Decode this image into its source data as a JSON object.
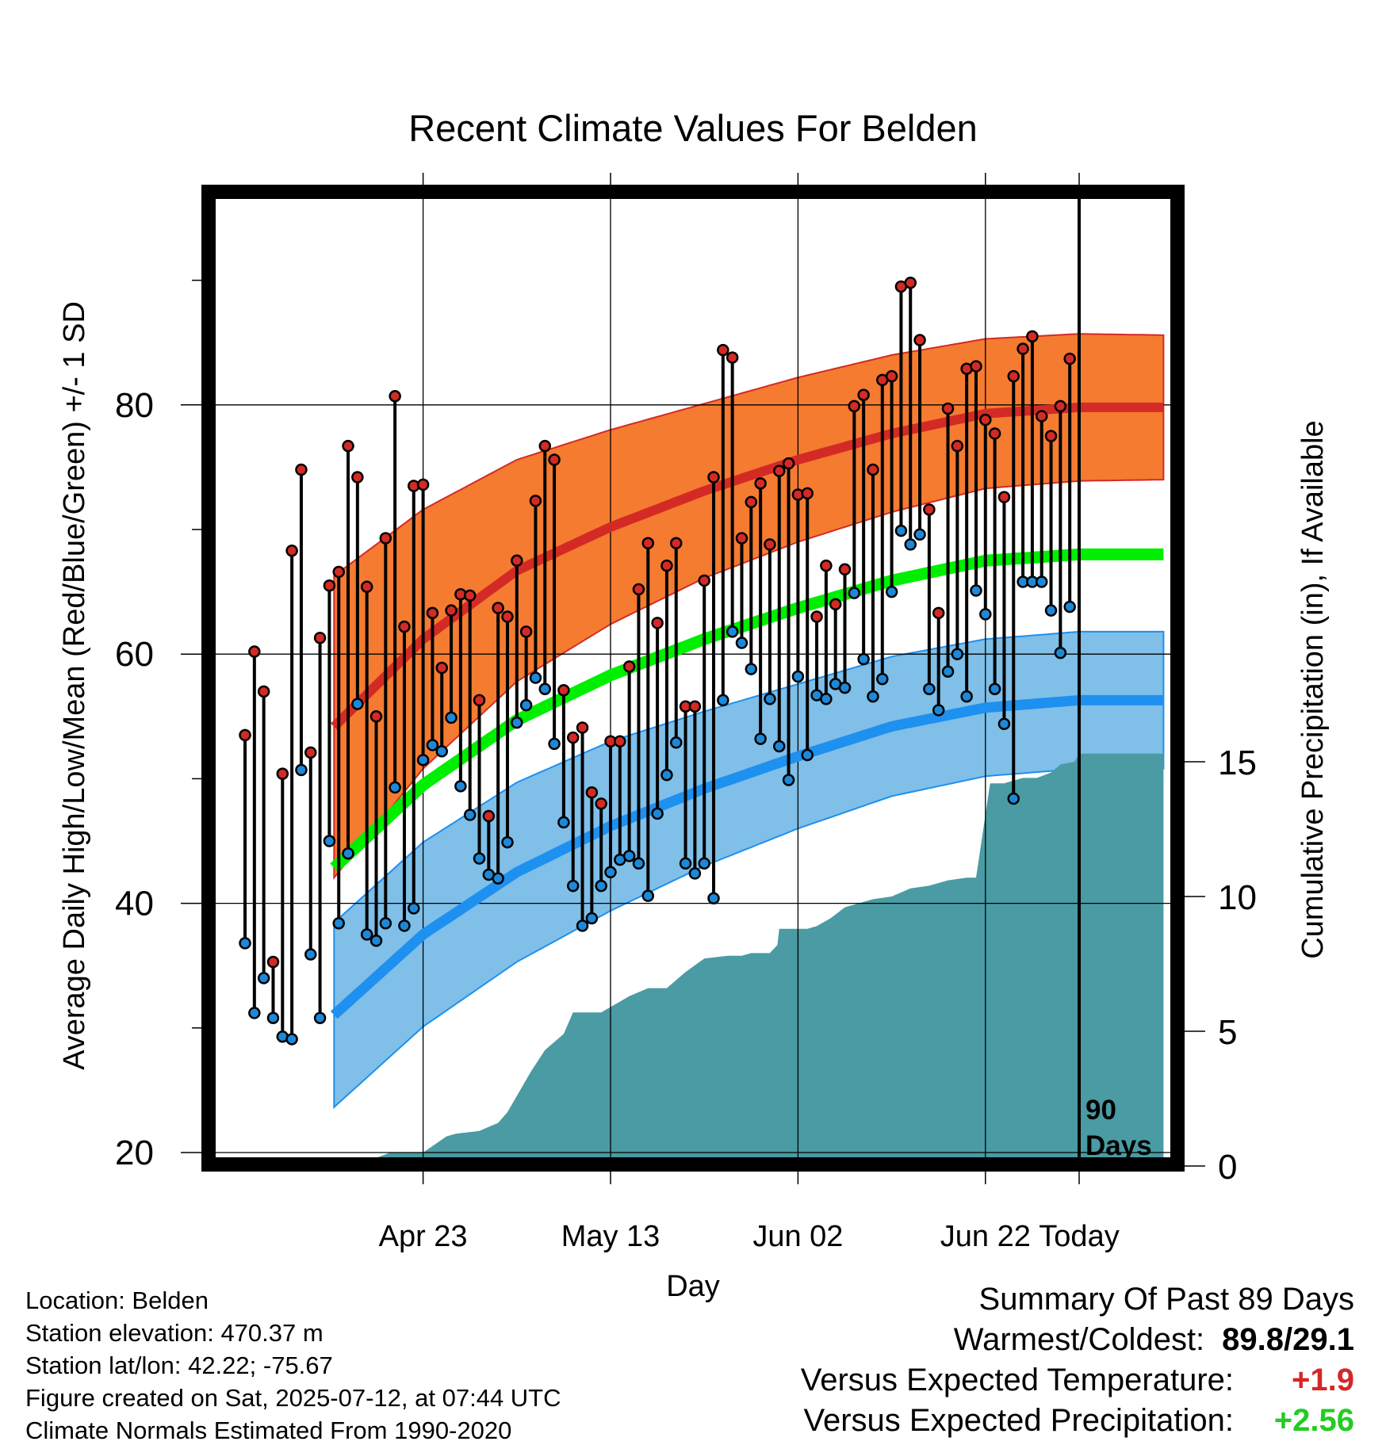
{
  "chart_data": {
    "type": "line",
    "title": "Recent Climate Values For Belden",
    "xlabel": "Day",
    "ylabel": "Average Daily High/Low/Mean (Red/Blue/Green) +/- 1 SD",
    "y2label": "Cumulative Precipitation (in), If Available",
    "ylim": [
      19,
      95
    ],
    "y2lim": [
      0,
      29.8
    ],
    "xlim": [
      -79.5,
      9
    ],
    "yticks": [
      20,
      40,
      60,
      80
    ],
    "y2ticks": [
      0,
      5,
      10,
      15
    ],
    "xticks": [
      {
        "label": "Apr 23",
        "day": -70
      },
      {
        "label": "May 13",
        "day": -50
      },
      {
        "label": "Jun 02",
        "day": -30
      },
      {
        "label": "Jun 22",
        "day": -10
      },
      {
        "label": "Today",
        "day": 0
      }
    ],
    "grid": true,
    "today_marker": {
      "label_line1": "90",
      "label_line2": "Days"
    },
    "normal_days": [
      -80,
      -70,
      -60,
      -50,
      -40,
      -30,
      -20,
      -10,
      0,
      9
    ],
    "normal_high": [
      53.8,
      61.2,
      66.7,
      70.2,
      73.1,
      75.6,
      77.7,
      79.3,
      79.8,
      79.8
    ],
    "normal_high_sd": [
      12.2,
      10.4,
      8.9,
      7.8,
      7.0,
      6.6,
      6.3,
      6.0,
      5.9,
      5.8
    ],
    "normal_mean": [
      42.5,
      49.5,
      54.7,
      58.3,
      61.2,
      63.7,
      65.9,
      67.5,
      68.0,
      68.0
    ],
    "normal_low": [
      30.7,
      37.5,
      42.5,
      46.2,
      49.2,
      51.8,
      54.2,
      55.7,
      56.3,
      56.3
    ],
    "normal_low_sd": [
      7.4,
      7.4,
      7.2,
      6.8,
      6.2,
      5.8,
      5.6,
      5.5,
      5.5,
      5.5
    ],
    "series": [
      {
        "name": "High",
        "values": [
          53.5,
          60.2,
          57.0,
          35.3,
          50.4,
          68.3,
          74.8,
          52.1,
          61.3,
          65.5,
          66.6,
          76.7,
          74.2,
          65.4,
          55.0,
          69.3,
          80.7,
          62.2,
          73.5,
          73.6,
          63.3,
          58.9,
          63.5,
          64.8,
          64.7,
          56.3,
          47.0,
          63.7,
          63.0,
          67.5,
          61.8,
          72.3,
          76.7,
          75.6,
          57.1,
          53.3,
          54.1,
          48.9,
          48.0,
          53.0,
          53.0,
          59.0,
          65.2,
          68.9,
          62.5,
          67.1,
          68.9,
          55.8,
          55.8,
          65.9,
          74.2,
          84.4,
          83.8,
          69.3,
          72.2,
          73.7,
          68.8,
          74.7,
          75.3,
          72.8,
          72.9,
          63.0,
          67.1,
          64.0,
          66.8,
          79.9,
          80.8,
          74.8,
          82.0,
          82.3,
          89.5,
          89.8,
          85.2,
          71.6,
          63.3,
          79.7,
          76.7,
          82.9,
          83.1,
          78.8,
          77.7,
          72.6,
          82.3,
          84.5,
          85.5,
          79.1,
          77.5,
          79.9,
          83.7
        ]
      },
      {
        "name": "Low",
        "values": [
          36.8,
          31.2,
          34.0,
          30.8,
          29.3,
          29.1,
          50.7,
          35.9,
          30.8,
          45.0,
          38.4,
          44.0,
          56.0,
          37.5,
          37.0,
          38.4,
          49.3,
          38.2,
          39.6,
          51.5,
          52.7,
          52.2,
          54.9,
          49.4,
          47.1,
          43.6,
          42.3,
          42.0,
          44.9,
          54.5,
          55.9,
          58.1,
          57.2,
          52.8,
          46.5,
          41.4,
          38.2,
          38.8,
          41.4,
          42.5,
          43.5,
          43.8,
          43.2,
          40.6,
          47.2,
          50.3,
          52.9,
          43.2,
          42.4,
          43.2,
          40.4,
          56.3,
          61.8,
          60.9,
          58.8,
          53.2,
          56.4,
          52.6,
          49.9,
          58.2,
          51.9,
          56.7,
          56.4,
          57.6,
          57.3,
          64.9,
          59.6,
          56.6,
          58.0,
          65.0,
          69.9,
          68.8,
          69.6,
          57.2,
          55.5,
          58.6,
          60.0,
          56.6,
          65.1,
          63.2,
          57.2,
          54.4,
          48.4,
          65.8,
          65.8,
          65.8,
          63.5,
          60.1,
          63.8
        ]
      },
      {
        "name": "Cumulative Precipitation",
        "days": [
          -79.5,
          -77.5,
          -75,
          -73.5,
          -70,
          -67.5,
          -66.5,
          -64,
          -62,
          -61,
          -60,
          -58.5,
          -57,
          -55,
          -54,
          -51,
          -49,
          -48,
          -46,
          -44,
          -42,
          -40,
          -37.5,
          -36,
          -35,
          -33,
          -32.2,
          -32,
          -29,
          -28,
          -26.5,
          -25,
          -24,
          -22,
          -20,
          -18,
          -16,
          -15,
          -14,
          -12,
          -11,
          -9.5,
          -8,
          -6,
          -4.5,
          -3,
          -2,
          -0.5,
          0,
          9
        ],
        "values": [
          0.1,
          0.1,
          0.3,
          0.5,
          0.5,
          1.1,
          1.2,
          1.3,
          1.6,
          2.0,
          2.6,
          3.5,
          4.3,
          4.9,
          5.7,
          5.7,
          6.1,
          6.3,
          6.6,
          6.6,
          7.2,
          7.7,
          7.8,
          7.8,
          7.9,
          7.9,
          8.2,
          8.8,
          8.8,
          8.9,
          9.2,
          9.6,
          9.7,
          9.9,
          10.0,
          10.3,
          10.4,
          10.5,
          10.6,
          10.7,
          10.7,
          14.2,
          14.2,
          14.4,
          14.4,
          14.6,
          14.9,
          15.0,
          15.3,
          15.3
        ]
      }
    ]
  },
  "info": {
    "location": "Location: Belden",
    "elevation": "Station elevation: 470.37 m",
    "latlon": "Station lat/lon: 42.22; -75.67",
    "created": "Figure created on Sat, 2025-07-12, at 07:44 UTC",
    "normals": "Climate Normals Estimated From 1990-2020"
  },
  "summary": {
    "heading": "Summary Of Past 89 Days",
    "warm_cold_label": "Warmest/Coldest:",
    "warm_cold_value": "89.8/29.1",
    "temp_label": "Versus Expected Temperature:",
    "temp_value": "+1.9",
    "temp_color": "#d62728",
    "precip_label": "Versus Expected Precipitation:",
    "precip_value": "+2.56",
    "precip_color": "#22cc22"
  },
  "colors": {
    "high_band": "#f47b30",
    "high_line": "#d42a25",
    "low_band": "#7fbfe8",
    "low_line": "#1e90f0",
    "mean_line": "#00ee00",
    "precip_fill": "#4a9ba3",
    "high_marker": "#d42a25",
    "low_marker": "#1e88d8"
  }
}
